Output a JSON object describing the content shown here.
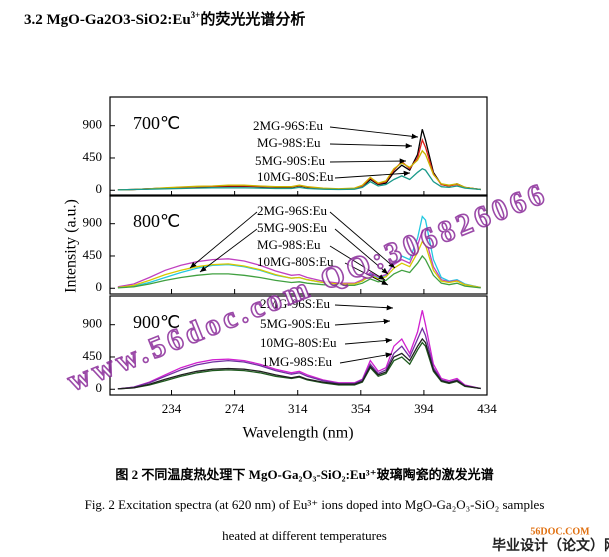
{
  "heading": {
    "main": "3.2 MgO-Ga2O3-SiO2:Eu",
    "sup": "3+",
    "tail": "的荧光光谱分析"
  },
  "chart_data": {
    "type": "line",
    "xlabel": "Wavelength (nm)",
    "ylabel": "Intensity (a.u.)",
    "xlim": [
      195,
      434
    ],
    "xticks": [
      234,
      274,
      314,
      354,
      394,
      434
    ],
    "x": [
      200,
      210,
      220,
      230,
      240,
      250,
      260,
      270,
      280,
      290,
      300,
      310,
      315,
      320,
      330,
      340,
      350,
      355,
      360,
      365,
      370,
      375,
      380,
      385,
      390,
      393,
      395,
      400,
      405,
      410,
      415,
      420,
      430
    ],
    "panels": [
      {
        "annotation": "700℃",
        "ylim": [
          -80,
          1300
        ],
        "yticks": [
          0,
          450,
          900
        ],
        "series": [
          {
            "name": "2MG-96S:Eu",
            "color": "#000000",
            "values": [
              5,
              10,
              20,
              30,
              40,
              45,
              50,
              55,
              55,
              50,
              40,
              40,
              60,
              40,
              20,
              15,
              20,
              50,
              150,
              80,
              100,
              250,
              350,
              280,
              500,
              850,
              700,
              250,
              80,
              60,
              90,
              40,
              10
            ]
          },
          {
            "name": "MG-98S:Eu",
            "color": "#e0201a",
            "values": [
              5,
              10,
              20,
              30,
              40,
              50,
              55,
              60,
              60,
              55,
              45,
              45,
              65,
              45,
              25,
              15,
              25,
              60,
              170,
              90,
              120,
              280,
              400,
              300,
              450,
              700,
              600,
              230,
              80,
              60,
              80,
              40,
              10
            ]
          },
          {
            "name": "5MG-90S:Eu",
            "color": "#c8b400",
            "values": [
              5,
              10,
              20,
              35,
              45,
              55,
              60,
              70,
              70,
              60,
              50,
              50,
              70,
              50,
              30,
              20,
              30,
              70,
              180,
              100,
              130,
              300,
              380,
              320,
              420,
              550,
              500,
              220,
              90,
              70,
              90,
              40,
              10
            ]
          },
          {
            "name": "10MG-80S:Eu",
            "color": "#1a9a8a",
            "values": [
              5,
              10,
              15,
              20,
              25,
              30,
              35,
              35,
              35,
              30,
              25,
              25,
              40,
              25,
              15,
              10,
              15,
              40,
              120,
              60,
              80,
              150,
              200,
              150,
              250,
              300,
              280,
              120,
              50,
              40,
              60,
              30,
              10
            ]
          }
        ]
      },
      {
        "annotation": "800℃",
        "ylim": [
          -80,
          1300
        ],
        "yticks": [
          0,
          450,
          900
        ],
        "series": [
          {
            "name": "2MG-96S:Eu",
            "color": "#22c8e0",
            "values": [
              10,
              30,
              80,
              150,
              220,
              280,
              320,
              330,
              300,
              250,
              180,
              140,
              150,
              120,
              80,
              60,
              60,
              100,
              200,
              150,
              180,
              350,
              450,
              400,
              700,
              1000,
              950,
              400,
              150,
              100,
              120,
              60,
              10
            ]
          },
          {
            "name": "5MG-90S:Eu",
            "color": "#c040c0",
            "values": [
              20,
              60,
              150,
              250,
              320,
              370,
              400,
              410,
              380,
              320,
              240,
              180,
              190,
              150,
              100,
              70,
              70,
              120,
              220,
              160,
              190,
              330,
              400,
              350,
              600,
              800,
              700,
              300,
              120,
              90,
              110,
              50,
              10
            ]
          },
          {
            "name": "MG-98S:Eu",
            "color": "#d8c800",
            "values": [
              10,
              40,
              110,
              190,
              250,
              300,
              330,
              340,
              310,
              260,
              190,
              140,
              150,
              120,
              80,
              60,
              60,
              100,
              180,
              130,
              160,
              280,
              350,
              300,
              500,
              650,
              600,
              250,
              100,
              80,
              100,
              50,
              10
            ]
          },
          {
            "name": "10MG-80S:Eu",
            "color": "#40a040",
            "values": [
              5,
              20,
              60,
              110,
              150,
              180,
              200,
              200,
              180,
              150,
              110,
              80,
              90,
              70,
              50,
              40,
              40,
              70,
              130,
              90,
              110,
              200,
              250,
              220,
              350,
              450,
              400,
              180,
              70,
              50,
              70,
              30,
              5
            ]
          }
        ]
      },
      {
        "annotation": "900℃",
        "ylim": [
          -80,
          1300
        ],
        "yticks": [
          0,
          450,
          900
        ],
        "series": [
          {
            "name": "2MG-96S:Eu",
            "color": "#d020d0",
            "values": [
              5,
              30,
              100,
              200,
              300,
              370,
              410,
              420,
              400,
              350,
              280,
              230,
              250,
              200,
              130,
              90,
              90,
              140,
              400,
              250,
              300,
              600,
              700,
              500,
              800,
              1100,
              900,
              350,
              150,
              120,
              150,
              60,
              10
            ]
          },
          {
            "name": "5MG-90S:Eu",
            "color": "#7030a0",
            "values": [
              5,
              30,
              90,
              180,
              270,
              340,
              380,
              400,
              380,
              330,
              260,
              210,
              230,
              180,
              120,
              80,
              80,
              130,
              350,
              220,
              270,
              500,
              600,
              450,
              700,
              850,
              750,
              300,
              130,
              100,
              130,
              50,
              10
            ]
          },
          {
            "name": "10MG-80S:Eu",
            "color": "#1e5a1e",
            "values": [
              5,
              20,
              60,
              120,
              180,
              230,
              260,
              270,
              260,
              230,
              180,
              150,
              170,
              130,
              90,
              60,
              60,
              100,
              300,
              180,
              220,
              400,
              450,
              350,
              550,
              650,
              600,
              250,
              110,
              80,
              110,
              40,
              10
            ]
          },
          {
            "name": "1MG-98S:Eu",
            "color": "#202020",
            "values": [
              5,
              20,
              70,
              140,
              200,
              250,
              280,
              290,
              280,
              250,
              200,
              160,
              180,
              140,
              100,
              70,
              70,
              110,
              320,
              200,
              240,
              450,
              500,
              400,
              600,
              700,
              650,
              270,
              120,
              90,
              120,
              45,
              10
            ]
          }
        ]
      }
    ]
  },
  "caption_cn": "图 2 不同温度热处理下 MgO-Ga₂O₃-SiO₂:Eu³⁺玻璃陶瓷的激发光谱",
  "caption_en_1": "Fig. 2  Excitation spectra (at 620 nm) of Eu³⁺ ions doped into MgO-Ga₂O₃-SiO₂ samples",
  "caption_en_2": "heated at different temperatures",
  "watermark": "www.56doc.com  QQ:306826066",
  "logo_top": "56DOC.COM",
  "logo_bottom": "毕业设计（论文）网"
}
